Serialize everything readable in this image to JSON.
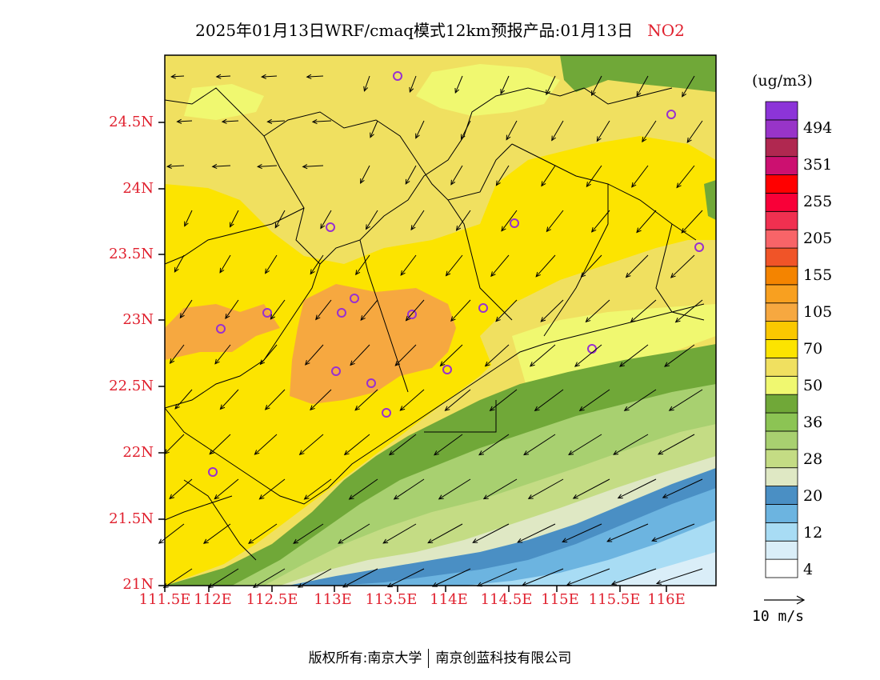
{
  "title": {
    "main": "2025年01月13日WRF/cmaq模式12km预报产品:01月13日",
    "pollutant": "NO2"
  },
  "axes": {
    "latitudes": [
      {
        "label": "24.5N",
        "value": 24.5
      },
      {
        "label": "24N",
        "value": 24.0
      },
      {
        "label": "23.5N",
        "value": 23.5
      },
      {
        "label": "23N",
        "value": 23.0
      },
      {
        "label": "22.5N",
        "value": 22.5
      },
      {
        "label": "22N",
        "value": 22.0
      },
      {
        "label": "21.5N",
        "value": 21.5
      },
      {
        "label": "21N",
        "value": 21.0
      }
    ],
    "longitudes": [
      {
        "label": "111.5E",
        "value": 111.5
      },
      {
        "label": "112E",
        "value": 112.0
      },
      {
        "label": "112.5E",
        "value": 112.5
      },
      {
        "label": "113E",
        "value": 113.0
      },
      {
        "label": "113.5E",
        "value": 113.5
      },
      {
        "label": "114E",
        "value": 114.0
      },
      {
        "label": "114.5E",
        "value": 114.5
      },
      {
        "label": "115E",
        "value": 115.0
      },
      {
        "label": "115.5E",
        "value": 115.5
      },
      {
        "label": "116E",
        "value": 116.0
      }
    ]
  },
  "colorbar": {
    "unit": "(ug/m3)",
    "colors": [
      "#ffffff",
      "#daeef8",
      "#a8dcf4",
      "#6cb4e0",
      "#4a8fc4",
      "#dfe8c4",
      "#c4dc84",
      "#a8d070",
      "#8cc454",
      "#70a838",
      "#f0f870",
      "#f0e060",
      "#fce400",
      "#fac800",
      "#f6a840",
      "#f8a020",
      "#f48400",
      "#f05428",
      "#f86468",
      "#f03050",
      "#f80038",
      "#ff0000",
      "#cc1070",
      "#b02850",
      "#9834c8",
      "#8c34d8"
    ],
    "labels": [
      "4",
      "12",
      "20",
      "28",
      "36",
      "50",
      "70",
      "105",
      "155",
      "205",
      "255",
      "351",
      "494"
    ]
  },
  "wind_reference": {
    "label": "10 m/s"
  },
  "monitoring_sites": 17,
  "footer": {
    "copyright": "版权所有:南京大学",
    "company": "南京创蓝科技有限公司"
  }
}
